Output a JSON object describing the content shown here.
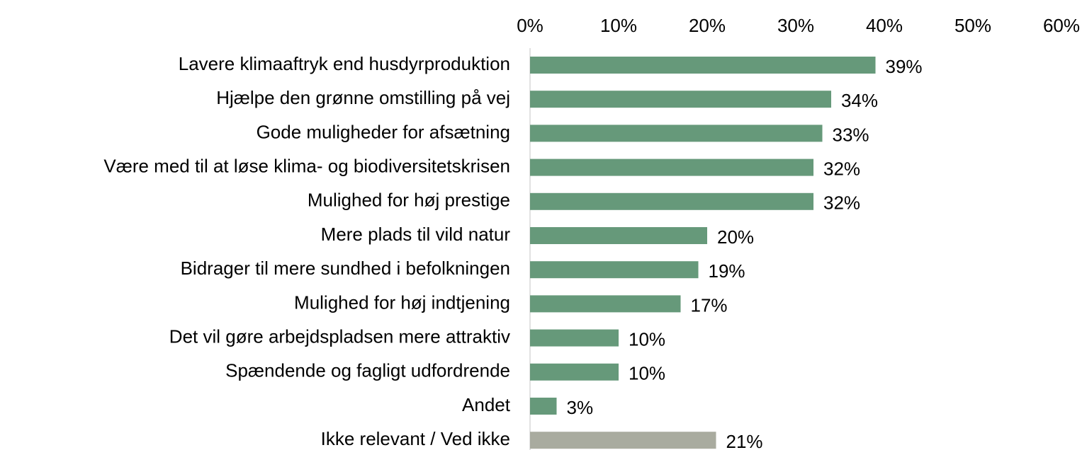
{
  "chart_data": {
    "type": "barh",
    "categories": [
      "Lavere klimaaftryk end husdyrproduktion",
      "Hjælpe den grønne omstilling på vej",
      "Gode muligheder for afsætning",
      "Være med til at løse klima- og biodiversitetskrisen",
      "Mulighed for høj prestige",
      "Mere plads til vild natur",
      "Bidrager til mere sundhed i befolkningen",
      "Mulighed for høj indtjening",
      "Det vil gøre arbejdspladsen mere attraktiv",
      "Spændende og fagligt udfordrende",
      "Andet",
      "Ikke relevant / Ved ikke"
    ],
    "values": [
      39,
      34,
      33,
      32,
      32,
      20,
      19,
      17,
      10,
      10,
      3,
      21
    ],
    "value_labels": [
      "39%",
      "34%",
      "33%",
      "32%",
      "32%",
      "20%",
      "19%",
      "17%",
      "10%",
      "10%",
      "3%",
      "21%"
    ],
    "colors": [
      "#66997a",
      "#66997a",
      "#66997a",
      "#66997a",
      "#66997a",
      "#66997a",
      "#66997a",
      "#66997a",
      "#66997a",
      "#66997a",
      "#66997a",
      "#a9ab9f"
    ],
    "xlim": [
      0,
      60
    ],
    "xticks": [
      {
        "value": 0,
        "label": "0%"
      },
      {
        "value": 10,
        "label": "10%"
      },
      {
        "value": 20,
        "label": "20%"
      },
      {
        "value": 30,
        "label": "30%"
      },
      {
        "value": 40,
        "label": "40%"
      },
      {
        "value": 50,
        "label": "50%"
      },
      {
        "value": 60,
        "label": "60%"
      }
    ],
    "grid": false
  }
}
